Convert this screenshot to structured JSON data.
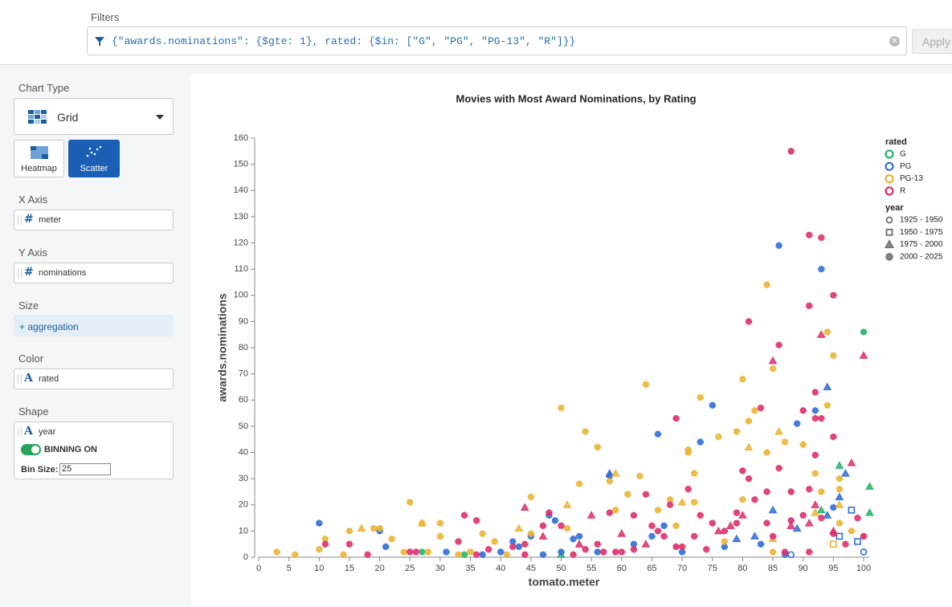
{
  "filters": {
    "label": "Filters",
    "query": "{\"awards.nominations\": {$gte: 1}, rated: {$in: [\"G\", \"PG\", \"PG-13\", \"R\"]}}",
    "apply": "Apply"
  },
  "sidebar": {
    "chart_type": {
      "label": "Chart Type",
      "selected": "Grid",
      "options": [
        "Heatmap",
        "Scatter"
      ]
    },
    "x_axis": {
      "label": "X Axis",
      "field": "meter"
    },
    "y_axis": {
      "label": "Y Axis",
      "field": "nominations"
    },
    "size": {
      "label": "Size",
      "field": "+ aggregation"
    },
    "color": {
      "label": "Color",
      "field": "rated"
    },
    "shape": {
      "label": "Shape",
      "field": "year",
      "toggle": "BINNING ON",
      "bin_label": "Bin Size:",
      "bin_value": "25"
    }
  },
  "chart_data": {
    "type": "scatter",
    "title": "Movies with Most Award Nominations, by Rating",
    "x_label": "tomato.meter",
    "y_label": "awards.nominations",
    "xlim": [
      0,
      101
    ],
    "ylim": [
      0,
      160
    ],
    "xticks": [
      0,
      5,
      10,
      15,
      20,
      25,
      30,
      35,
      40,
      45,
      50,
      55,
      60,
      65,
      70,
      75,
      80,
      85,
      90,
      95,
      100
    ],
    "yticks": [
      0,
      10,
      20,
      30,
      40,
      50,
      60,
      70,
      80,
      90,
      100,
      110,
      120,
      130,
      140,
      150,
      160
    ],
    "color_legend_title": "rated",
    "shape_legend": {
      "title": "year",
      "items": [
        {
          "label": "1925 - 1950",
          "shape": "circle"
        },
        {
          "label": "1950 - 1975",
          "shape": "square"
        },
        {
          "label": "1975 - 2000",
          "shape": "triangle"
        },
        {
          "label": "2000 - 2025",
          "shape": "gear"
        }
      ]
    },
    "series": [
      {
        "name": "G",
        "color": "#27b46e",
        "groups": [
          {
            "year": "1975 - 2000",
            "x": [
              96,
              101,
              101,
              93,
              50
            ],
            "values": [
              35,
              27,
              17,
              18,
              1
            ]
          },
          {
            "year": "2000 - 2025",
            "x": [
              100,
              27,
              34
            ],
            "values": [
              86,
              2,
              1
            ]
          }
        ]
      },
      {
        "name": "PG",
        "color": "#2f6fd8",
        "groups": [
          {
            "year": "1925 - 1950",
            "x": [
              100,
              88
            ],
            "values": [
              2,
              1
            ]
          },
          {
            "year": "1950 - 1975",
            "x": [
              99,
              96,
              98
            ],
            "values": [
              6,
              8,
              18
            ]
          },
          {
            "year": "1975 - 2000",
            "x": [
              94,
              97,
              96,
              85,
              82,
              79,
              89,
              94,
              58
            ],
            "values": [
              65,
              32,
              23,
              18,
              8,
              7,
              11,
              16,
              32
            ]
          },
          {
            "year": "2000 - 2025",
            "x": [
              86,
              93,
              89,
              92,
              95,
              75,
              73,
              66,
              58,
              65,
              62,
              70,
              48,
              49,
              52,
              53,
              45,
              43,
              42,
              40,
              37,
              31,
              21,
              20,
              10,
              47,
              50,
              56,
              67,
              77,
              83,
              87
            ],
            "values": [
              119,
              110,
              51,
              56,
              19,
              58,
              44,
              47,
              31,
              8,
              5,
              2,
              16,
              14,
              7,
              8,
              8,
              4,
              6,
              2,
              1,
              2,
              4,
              10,
              13,
              1,
              2,
              2,
              12,
              4,
              5,
              1
            ]
          }
        ]
      },
      {
        "name": "PG-13",
        "color": "#ebb434",
        "groups": [
          {
            "year": "1950 - 1975",
            "x": [
              95
            ],
            "values": [
              5
            ]
          },
          {
            "year": "1975 - 2000",
            "x": [
              43,
              51,
              59,
              70,
              81,
              86,
              96,
              17,
              27,
              85,
              92
            ],
            "values": [
              11,
              20,
              32,
              21,
              42,
              48,
              20,
              11,
              13,
              7,
              17
            ]
          },
          {
            "year": "2000 - 2025",
            "x": [
              84,
              94,
              95,
              85,
              80,
              73,
              50,
              82,
              81,
              84,
              90,
              87,
              92,
              96,
              94,
              71,
              71,
              79,
              76,
              64,
              54,
              56,
              58,
              63,
              61,
              68,
              72,
              53,
              45,
              25,
              30,
              27,
              30,
              20,
              15,
              11,
              10,
              3,
              6,
              14,
              19,
              22,
              24,
              28,
              33,
              35,
              37,
              39,
              41,
              45,
              51,
              59,
              66,
              69,
              72,
              77,
              80,
              85,
              93,
              96,
              98,
              100,
              96
            ],
            "values": [
              104,
              86,
              77,
              72,
              68,
              61,
              57,
              56,
              52,
              40,
              43,
              44,
              32,
              30,
              58,
              41,
              40,
              48,
              46,
              66,
              48,
              42,
              29,
              31,
              24,
              22,
              32,
              28,
              23,
              21,
              13,
              13,
              8,
              11,
              10,
              7,
              3,
              2,
              1,
              1,
              11,
              7,
              2,
              2,
              1,
              2,
              9,
              6,
              1,
              9,
              11,
              18,
              18,
              12,
              21,
              6,
              22,
              2,
              25,
              26,
              10,
              8,
              13
            ]
          }
        ]
      },
      {
        "name": "R",
        "color": "#de2f6e",
        "groups": [
          {
            "year": "1975 - 2000",
            "x": [
              93,
              100,
              85,
              92,
              88,
              80,
              78,
              76,
              64,
              60,
              55,
              53,
              47,
              44,
              98,
              91,
              95
            ],
            "values": [
              85,
              77,
              75,
              20,
              12,
              16,
              12,
              10,
              5,
              9,
              16,
              5,
              8,
              19,
              36,
              13,
              10
            ]
          },
          {
            "year": "2000 - 2025",
            "x": [
              88,
              91,
              93,
              95,
              91,
              81,
              86,
              69,
              83,
              92,
              90,
              92,
              93,
              95,
              86,
              92,
              80,
              81,
              84,
              88,
              91,
              71,
              64,
              68,
              73,
              62,
              58,
              48,
              47,
              50,
              34,
              36,
              44,
              42,
              38,
              36,
              18,
              15,
              11,
              25,
              26,
              54,
              56,
              57,
              59,
              60,
              65,
              66,
              69,
              70,
              72,
              74,
              77,
              79,
              82,
              85,
              87,
              91,
              93,
              95,
              97,
              99,
              100,
              33,
              44,
              52,
              62,
              67,
              75,
              79,
              84,
              88,
              90
            ],
            "values": [
              155,
              123,
              122,
              100,
              96,
              90,
              81,
              53,
              57,
              63,
              56,
              53,
              53,
              46,
              34,
              39,
              33,
              30,
              25,
              25,
              26,
              26,
              24,
              20,
              16,
              16,
              17,
              17,
              12,
              12,
              16,
              14,
              5,
              4,
              3,
              1,
              1,
              5,
              5,
              2,
              2,
              3,
              5,
              2,
              2,
              2,
              12,
              10,
              4,
              4,
              8,
              3,
              10,
              17,
              22,
              8,
              2,
              2,
              15,
              9,
              5,
              15,
              8,
              6,
              1,
              1,
              3,
              8,
              13,
              13,
              13,
              14,
              16
            ]
          }
        ]
      }
    ]
  }
}
